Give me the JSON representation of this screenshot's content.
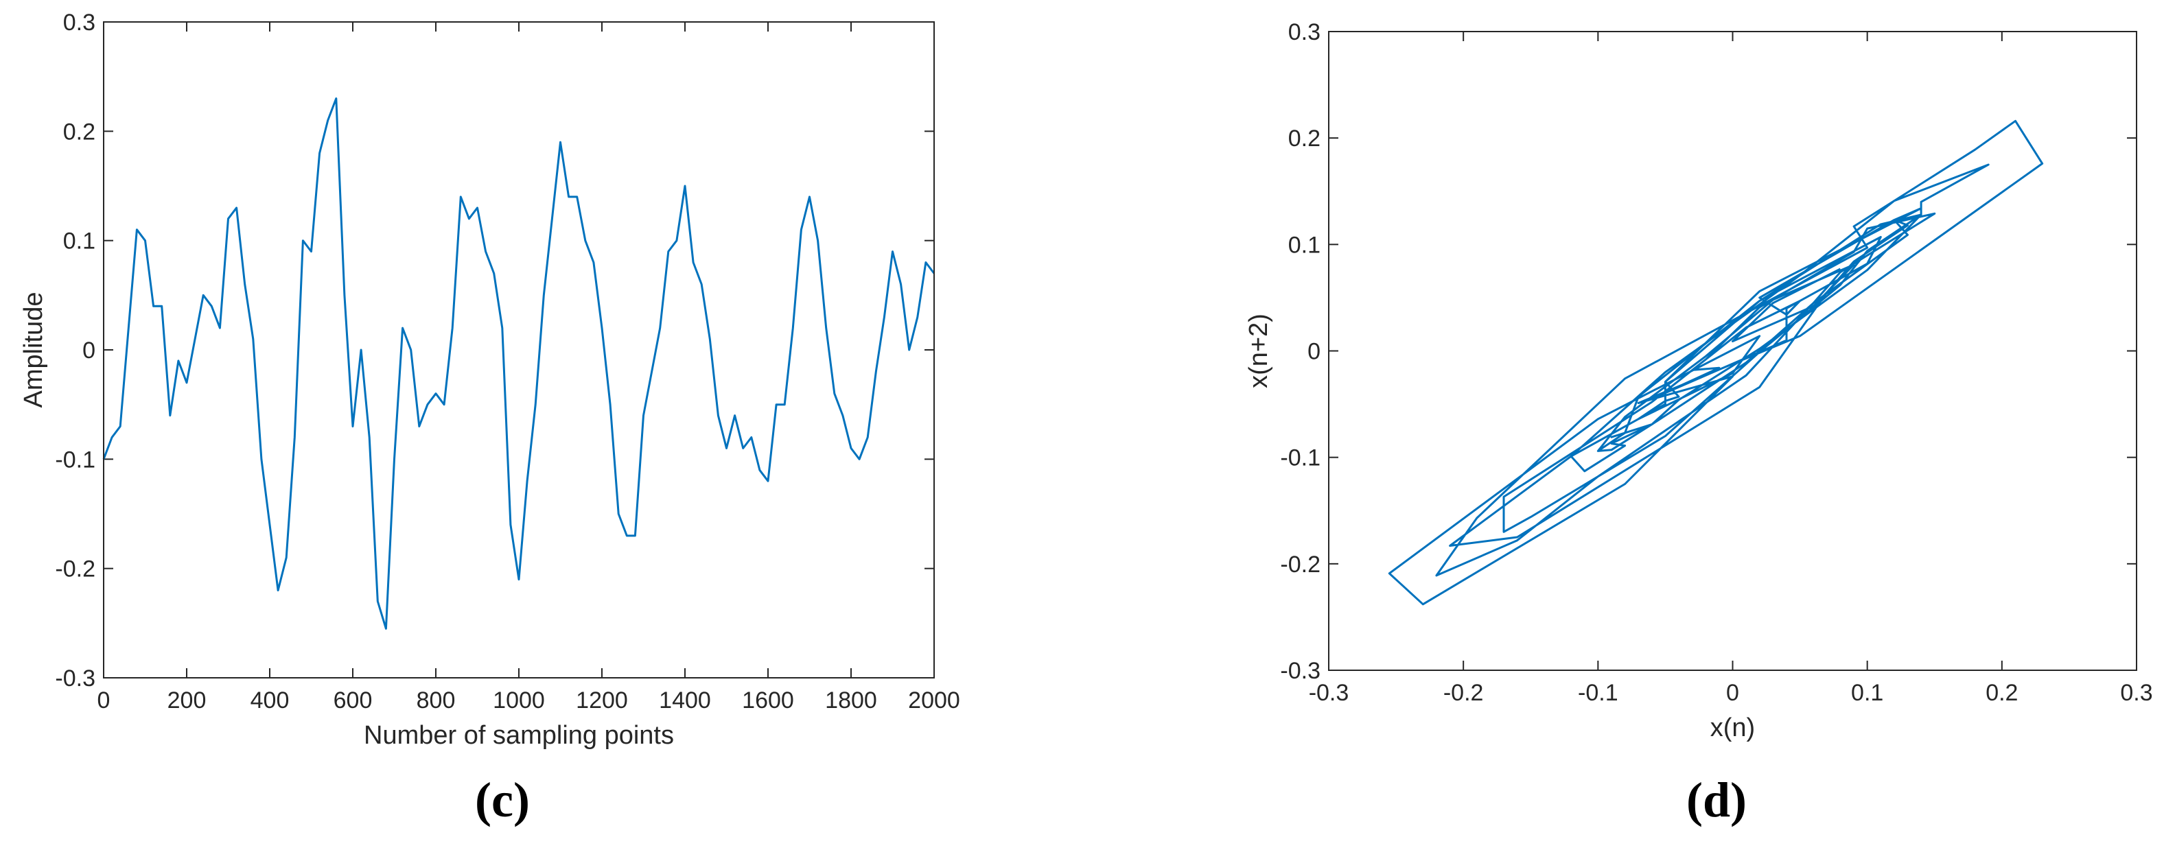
{
  "chart_data": [
    {
      "type": "line",
      "caption": "(c)",
      "xlabel": "Number of sampling points",
      "ylabel": "Amplitude",
      "color": "#0072bd",
      "x": [
        0,
        20,
        40,
        60,
        80,
        100,
        120,
        140,
        160,
        180,
        200,
        220,
        240,
        260,
        280,
        300,
        320,
        340,
        360,
        380,
        400,
        420,
        440,
        460,
        480,
        500,
        520,
        540,
        560,
        580,
        600,
        620,
        640,
        660,
        680,
        700,
        720,
        740,
        760,
        780,
        800,
        820,
        840,
        860,
        880,
        900,
        920,
        940,
        960,
        980,
        1000,
        1020,
        1040,
        1060,
        1080,
        1100,
        1120,
        1140,
        1160,
        1180,
        1200,
        1220,
        1240,
        1260,
        1280,
        1300,
        1320,
        1340,
        1360,
        1380,
        1400,
        1420,
        1440,
        1460,
        1480,
        1500,
        1520,
        1540,
        1560,
        1580,
        1600,
        1620,
        1640,
        1660,
        1680,
        1700,
        1720,
        1740,
        1760,
        1780,
        1800,
        1820,
        1840,
        1860,
        1880,
        1900,
        1920,
        1940,
        1960,
        1980,
        2000
      ],
      "values": [
        -0.1,
        -0.08,
        -0.07,
        0.02,
        0.11,
        0.1,
        0.04,
        0.04,
        -0.06,
        -0.01,
        -0.03,
        0.01,
        0.05,
        0.04,
        0.02,
        0.12,
        0.13,
        0.06,
        0.01,
        -0.1,
        -0.16,
        -0.22,
        -0.19,
        -0.08,
        0.1,
        0.09,
        0.18,
        0.21,
        0.23,
        0.05,
        -0.07,
        0.0,
        -0.08,
        -0.23,
        -0.255,
        -0.1,
        0.02,
        0.0,
        -0.07,
        -0.05,
        -0.04,
        -0.05,
        0.02,
        0.14,
        0.12,
        0.13,
        0.09,
        0.07,
        0.02,
        -0.16,
        -0.21,
        -0.12,
        -0.05,
        0.05,
        0.12,
        0.19,
        0.14,
        0.14,
        0.1,
        0.08,
        0.02,
        -0.05,
        -0.15,
        -0.17,
        -0.17,
        -0.06,
        -0.02,
        0.02,
        0.09,
        0.1,
        0.15,
        0.08,
        0.06,
        0.01,
        -0.06,
        -0.09,
        -0.06,
        -0.09,
        -0.08,
        -0.11,
        -0.12,
        -0.05,
        -0.05,
        0.02,
        0.11,
        0.14,
        0.1,
        0.02,
        -0.04,
        -0.06,
        -0.09,
        -0.1,
        -0.08,
        -0.02,
        0.03,
        0.09,
        0.06,
        0.0,
        0.03,
        0.08,
        0.07
      ],
      "xlim": [
        0,
        2000
      ],
      "xticks": [
        0,
        200,
        400,
        600,
        800,
        1000,
        1200,
        1400,
        1600,
        1800,
        2000
      ],
      "ylim": [
        -0.3,
        0.3
      ],
      "yticks": [
        -0.3,
        -0.2,
        -0.1,
        0,
        0.1,
        0.2,
        0.3
      ]
    },
    {
      "type": "line",
      "caption": "(d)",
      "xlabel": "x(n)",
      "ylabel": "x(n+2)",
      "color": "#0072bd",
      "x": [
        -0.1,
        -0.08,
        -0.07,
        0.02,
        0.11,
        0.1,
        0.04,
        0.04,
        -0.06,
        -0.01,
        -0.03,
        0.01,
        0.05,
        0.04,
        0.02,
        0.12,
        0.13,
        0.06,
        0.01,
        -0.1,
        -0.16,
        -0.22,
        -0.19,
        -0.08,
        0.1,
        0.09,
        0.18,
        0.21,
        0.23,
        0.05,
        -0.07,
        0.0,
        -0.08,
        -0.23,
        -0.255,
        -0.1,
        0.02,
        0.0,
        -0.07,
        -0.05,
        -0.04,
        -0.05,
        0.02,
        0.14,
        0.12,
        0.13,
        0.09,
        0.07,
        0.02,
        -0.16,
        -0.21,
        -0.12,
        -0.05,
        0.05,
        0.12,
        0.19,
        0.14,
        0.14,
        0.1,
        0.08,
        0.02,
        -0.05,
        -0.15,
        -0.17,
        -0.17,
        -0.06,
        -0.02,
        0.02,
        0.09,
        0.1,
        0.15,
        0.08,
        0.06,
        0.01,
        -0.06,
        -0.09,
        -0.06,
        -0.09,
        -0.08,
        -0.11,
        -0.12,
        -0.05,
        -0.05,
        0.02,
        0.11,
        0.14,
        0.1,
        0.02,
        -0.04,
        -0.06,
        -0.09,
        -0.1,
        -0.08,
        -0.02,
        0.03,
        0.09,
        0.06,
        0.0,
        0.03,
        0.08
      ],
      "values": [
        -0.094,
        -0.077,
        -0.043,
        0.047,
        0.107,
        0.082,
        0.04,
        0.01,
        -0.045,
        -0.016,
        -0.018,
        0.022,
        0.047,
        0.034,
        0.05,
        0.123,
        0.109,
        0.045,
        -0.023,
        -0.118,
        -0.178,
        -0.211,
        -0.157,
        -0.026,
        0.097,
        0.117,
        0.189,
        0.216,
        0.176,
        0.014,
        -0.049,
        -0.024,
        -0.125,
        -0.238,
        -0.209,
        -0.064,
        0.014,
        -0.021,
        -0.064,
        -0.047,
        -0.043,
        -0.029,
        0.056,
        0.134,
        0.123,
        0.118,
        0.084,
        0.055,
        -0.034,
        -0.175,
        -0.183,
        -0.099,
        -0.02,
        0.071,
        0.141,
        0.175,
        0.14,
        0.128,
        0.094,
        0.062,
        -0.001,
        -0.08,
        -0.156,
        -0.17,
        -0.137,
        -0.048,
        -0.008,
        0.041,
        0.093,
        0.115,
        0.129,
        0.074,
        0.045,
        -0.011,
        -0.069,
        -0.081,
        -0.069,
        -0.087,
        -0.089,
        -0.113,
        -0.099,
        -0.05,
        -0.029,
        0.047,
        0.119,
        0.128,
        0.076,
        0.002,
        -0.046,
        -0.069,
        -0.093,
        -0.094,
        -0.062,
        -0.005,
        0.048,
        0.081,
        0.042,
        0.009,
        0.045,
        0.077
      ],
      "xlim": [
        -0.3,
        0.3
      ],
      "xticks": [
        -0.3,
        -0.2,
        -0.1,
        0,
        0.1,
        0.2,
        0.3
      ],
      "ylim": [
        -0.3,
        0.3
      ],
      "yticks": [
        -0.3,
        -0.2,
        -0.1,
        0,
        0.1,
        0.2,
        0.3
      ]
    }
  ]
}
